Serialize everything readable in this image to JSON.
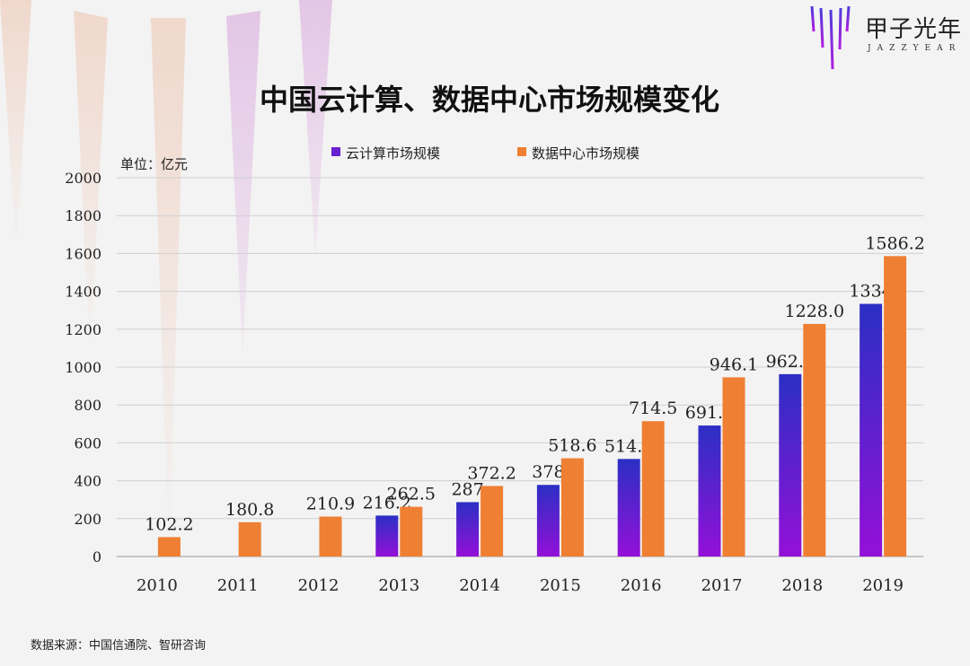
{
  "brand": {
    "name": "甲子光年",
    "sub": "JAZZYEAR"
  },
  "source": "数据来源：中国信通院、智研咨询",
  "chart_data": {
    "type": "bar",
    "title": "中国云计算、数据中心市场规模变化",
    "unit_label": "单位：亿元",
    "categories": [
      "2010",
      "2011",
      "2012",
      "2013",
      "2014",
      "2015",
      "2016",
      "2017",
      "2018",
      "2019"
    ],
    "series": [
      {
        "name": "云计算市场规模",
        "color": "#6a1fd0",
        "values": [
          null,
          null,
          null,
          216.2,
          287,
          378,
          514.9,
          691.6,
          962.8,
          1334
        ],
        "labels": [
          "",
          "",
          "",
          "216.2",
          "287",
          "378",
          "514.9",
          "691.6",
          "962.8",
          "1334"
        ]
      },
      {
        "name": "数据中心市场规模",
        "color": "#ef7f33",
        "values": [
          102.2,
          180.8,
          210.9,
          262.5,
          372.2,
          518.6,
          714.5,
          946.1,
          1228.0,
          1586.2
        ],
        "labels": [
          "102.2",
          "180.8",
          "210.9",
          "262.5",
          "372.2",
          "518.6",
          "714.5",
          "946.1",
          "1228.0",
          "1586.2"
        ]
      }
    ],
    "yticks": [
      "0",
      "200",
      "400",
      "600",
      "800",
      "1000",
      "1200",
      "1400",
      "1600",
      "1800",
      "2000"
    ],
    "ylim": [
      0,
      2000
    ],
    "grid": true,
    "legend": "top"
  }
}
